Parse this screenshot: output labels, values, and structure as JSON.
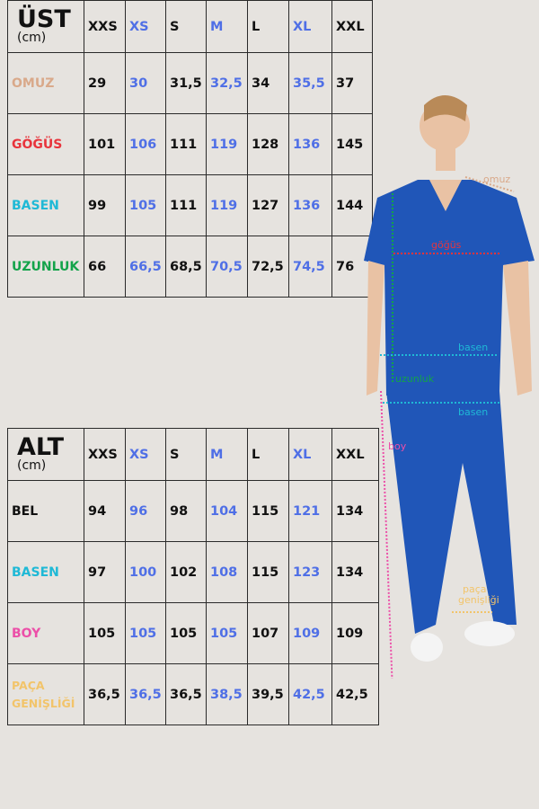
{
  "colors": {
    "background": "#e6e3df",
    "size_blue": "#4f6fe6",
    "omuz": "#d9a98a",
    "gogus": "#e8343c",
    "basen": "#1fb9d6",
    "uzunluk": "#13a34a",
    "boy": "#ec4fa8",
    "paca": "#f2c46a",
    "garment": "#2056b8"
  },
  "sizes": [
    "XXS",
    "XS",
    "S",
    "M",
    "L",
    "XL",
    "XXL"
  ],
  "top_table": {
    "title": "ÜST",
    "unit": "(cm)",
    "rows": [
      {
        "label": "OMUZ",
        "values": [
          "29",
          "30",
          "31,5",
          "32,5",
          "34",
          "35,5",
          "37"
        ]
      },
      {
        "label": "GÖĞÜS",
        "values": [
          "101",
          "106",
          "111",
          "119",
          "128",
          "136",
          "145"
        ]
      },
      {
        "label": "BASEN",
        "values": [
          "99",
          "105",
          "111",
          "119",
          "127",
          "136",
          "144"
        ]
      },
      {
        "label": "UZUNLUK",
        "values": [
          "66",
          "66,5",
          "68,5",
          "70,5",
          "72,5",
          "74,5",
          "76"
        ]
      }
    ]
  },
  "bottom_table": {
    "title": "ALT",
    "unit": "(cm)",
    "rows": [
      {
        "label": "BEL",
        "values": [
          "94",
          "96",
          "98",
          "104",
          "115",
          "121",
          "134"
        ]
      },
      {
        "label": "BASEN",
        "values": [
          "97",
          "100",
          "102",
          "108",
          "115",
          "123",
          "134"
        ]
      },
      {
        "label": "BOY",
        "values": [
          "105",
          "105",
          "105",
          "105",
          "107",
          "109",
          "109"
        ]
      },
      {
        "label": "PAÇA GENİŞLİĞİ",
        "values": [
          "36,5",
          "36,5",
          "36,5",
          "38,5",
          "39,5",
          "42,5",
          "42,5"
        ]
      }
    ]
  },
  "annotations": {
    "omuz": "omuz",
    "gogus": "göğüs",
    "basen_top": "basen",
    "uzunluk": "uzunluk",
    "basen_bottom": "basen",
    "boy": "boy",
    "paca_1": "paça",
    "paca_2": "genişliği"
  }
}
